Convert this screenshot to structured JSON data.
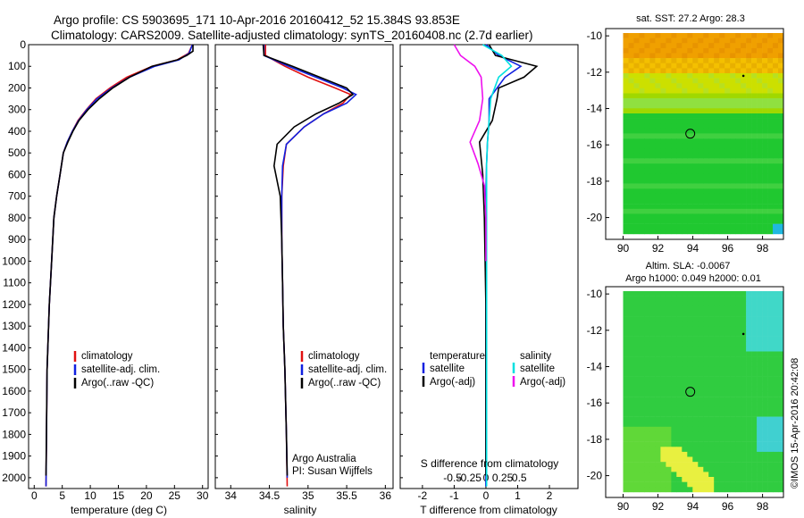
{
  "title": {
    "line1": "Argo profile: CS 5903695_171 10-Apr-2016 20160412_52 15.384S 93.853E",
    "line2": "Climatology: CARS2009. Satellite-adjusted climatology: synTS_20160408.nc (2.7d earlier)"
  },
  "colors": {
    "climatology": "#e01010",
    "satellite": "#1020e0",
    "argo": "#000000",
    "satellite_salinity": "#00e0e0",
    "argo_salinity_diff": "#ee10ee"
  },
  "depth_ticks": [
    "0",
    "100",
    "200",
    "300",
    "400",
    "500",
    "600",
    "700",
    "800",
    "900",
    "1000",
    "1100",
    "1200",
    "1300",
    "1400",
    "1500",
    "1600",
    "1700",
    "1800",
    "1900",
    "2000"
  ],
  "panels": {
    "temperature": {
      "xlabel": "temperature (deg C)",
      "xticks": [
        "0",
        "5",
        "10",
        "15",
        "20",
        "25",
        "30"
      ],
      "legend": [
        "climatology",
        "satellite-adj. clim.",
        "Argo(..raw -QC)"
      ]
    },
    "salinity": {
      "xlabel": "salinity",
      "xticks": [
        "34",
        "34.5",
        "35",
        "35.5",
        "36"
      ],
      "legend": [
        "climatology",
        "satellite-adj. clim.",
        "Argo(..raw -QC)"
      ],
      "credit1": "Argo Australia",
      "credit2": "PI: Susan Wijffels"
    },
    "difference": {
      "xlabel": "T difference from climatology",
      "slabel": "S difference from climatology",
      "xticks": [
        "-2",
        "-1",
        "0",
        "1",
        "2"
      ],
      "sticks": [
        "-0.5",
        "-0.25",
        "0",
        "0.25",
        "0.5"
      ],
      "legend_temp_head": "temperature",
      "legend_sal_head": "salinity",
      "legend_temp": [
        "satellite",
        "Argo(-adj)"
      ],
      "legend_sal": [
        "satellite",
        "Argo(-adj)"
      ]
    },
    "sst_map": {
      "title": "sat. SST: 27.2  Argo: 28.3",
      "xticks": [
        "90",
        "92",
        "94",
        "96",
        "98"
      ],
      "yticks": [
        "-10",
        "-12",
        "-14",
        "-16",
        "-18",
        "-20"
      ]
    },
    "sla_map": {
      "title1": "Altim. SLA: -0.0067",
      "title2": "Argo h1000: 0.049  h2000: 0.01",
      "xticks": [
        "90",
        "92",
        "94",
        "96",
        "98"
      ],
      "yticks": [
        "-10",
        "-12",
        "-14",
        "-16",
        "-18",
        "-20"
      ]
    }
  },
  "footer": "©IMOS 15-Apr-2016 20:42:08",
  "chart_data": [
    {
      "type": "line",
      "xlabel": "temperature (deg C)",
      "ylabel": "",
      "xlim": [
        -1,
        31
      ],
      "ylim": [
        2050,
        0
      ],
      "series": [
        {
          "name": "climatology",
          "x": [
            28.2,
            27.5,
            25.5,
            21,
            16.5,
            13.5,
            11,
            9.3,
            7.8,
            6.8,
            5.9,
            5.2,
            4.6,
            4.0,
            3.5,
            3.1,
            2.7,
            2.3,
            2.1
          ],
          "y": [
            0,
            40,
            70,
            100,
            150,
            200,
            250,
            300,
            350,
            400,
            450,
            500,
            600,
            700,
            800,
            1000,
            1200,
            1500,
            2040
          ]
        },
        {
          "name": "satellite-adj. clim.",
          "x": [
            28.2,
            27.6,
            25.8,
            21.5,
            17,
            13.8,
            11.2,
            9.4,
            7.9,
            6.8,
            5.9,
            5.2,
            4.6,
            4.0,
            3.5,
            3.1,
            2.7,
            2.3,
            2.1
          ],
          "y": [
            0,
            40,
            70,
            100,
            150,
            200,
            250,
            300,
            350,
            400,
            450,
            500,
            600,
            700,
            800,
            1000,
            1200,
            1500,
            2040
          ]
        },
        {
          "name": "Argo(..raw -QC)",
          "x": [
            28.3,
            28.3,
            27.2,
            25.5,
            21,
            17,
            14,
            11.6,
            9.6,
            8,
            6.9,
            6.0,
            5.2,
            4.6,
            4.0,
            3.5,
            3.1,
            2.7,
            2.3,
            2.1
          ],
          "y": [
            0,
            30,
            50,
            70,
            100,
            150,
            200,
            250,
            300,
            350,
            400,
            450,
            500,
            600,
            700,
            800,
            1000,
            1200,
            1500,
            1990
          ]
        }
      ]
    },
    {
      "type": "line",
      "xlabel": "salinity",
      "ylabel": "",
      "xlim": [
        33.8,
        36.1
      ],
      "ylim": [
        2050,
        0
      ],
      "series": [
        {
          "name": "climatology",
          "x": [
            34.45,
            34.45,
            34.7,
            35.0,
            35.35,
            35.55,
            35.45,
            35.2,
            34.95,
            34.72,
            34.68,
            34.66,
            34.66,
            34.67,
            34.68,
            34.7,
            34.72,
            34.73
          ],
          "y": [
            0,
            50,
            100,
            150,
            200,
            230,
            270,
            320,
            380,
            460,
            560,
            700,
            900,
            1100,
            1300,
            1500,
            1800,
            2040
          ]
        },
        {
          "name": "satellite-adj. clim.",
          "x": [
            34.43,
            34.43,
            34.75,
            35.1,
            35.45,
            35.62,
            35.5,
            35.2,
            34.95,
            34.72,
            34.67,
            34.66,
            34.66,
            34.67,
            34.68,
            34.7,
            34.72,
            34.73
          ],
          "y": [
            0,
            50,
            100,
            150,
            200,
            230,
            270,
            320,
            380,
            460,
            560,
            700,
            900,
            1100,
            1300,
            1500,
            1800,
            2000
          ]
        },
        {
          "name": "Argo(..raw -QC)",
          "x": [
            34.42,
            34.43,
            34.8,
            35.15,
            35.5,
            35.58,
            35.4,
            35.1,
            34.82,
            34.6,
            34.56,
            34.64,
            34.66,
            34.67,
            34.68,
            34.7,
            34.72,
            34.73
          ],
          "y": [
            0,
            50,
            100,
            150,
            200,
            230,
            270,
            320,
            380,
            460,
            560,
            700,
            900,
            1100,
            1300,
            1500,
            1800,
            1990
          ]
        }
      ]
    },
    {
      "type": "line",
      "xlabel": "T difference from climatology",
      "ylabel": "",
      "xlim": [
        -2.7,
        2.9
      ],
      "ylim": [
        2050,
        0
      ],
      "series": [
        {
          "name": "satellite (temperature)",
          "x": [
            0,
            0.4,
            1.1,
            0.6,
            0.1,
            0.1,
            0.05,
            0.02,
            0,
            0,
            0,
            0
          ],
          "y": [
            0,
            50,
            100,
            150,
            250,
            350,
            450,
            550,
            700,
            900,
            1200,
            2040
          ]
        },
        {
          "name": "Argo(-adj) (temperature)",
          "x": [
            0.1,
            0.3,
            1.6,
            1.2,
            0.4,
            0.35,
            0.2,
            -0.2,
            -0.1,
            -0.05,
            0,
            0
          ],
          "y": [
            0,
            50,
            100,
            150,
            200,
            250,
            350,
            450,
            600,
            800,
            1200,
            1990
          ]
        },
        {
          "name": "satellite (salinity)",
          "x": [
            -0.1,
            0.5,
            0.8,
            0.4,
            0.15,
            0.1,
            0.05,
            0.02,
            0.02,
            0.02,
            0.02
          ],
          "y": [
            0,
            50,
            100,
            150,
            250,
            350,
            450,
            550,
            700,
            1000,
            2040
          ]
        },
        {
          "name": "Argo(-adj) (salinity)",
          "x": [
            -1.0,
            -0.8,
            -0.35,
            -0.15,
            -0.1,
            -0.2,
            -0.5,
            -0.25,
            -0.05,
            0,
            0
          ],
          "y": [
            0,
            50,
            100,
            150,
            250,
            350,
            450,
            550,
            650,
            800,
            1000
          ]
        }
      ]
    },
    {
      "type": "heatmap",
      "title": "sat. SST: 27.2  Argo: 28.3",
      "xlim": [
        89,
        99.2
      ],
      "ylim": [
        -21.2,
        -9.6
      ],
      "argo_position": [
        93.853,
        -15.384
      ]
    },
    {
      "type": "heatmap",
      "title": "Altim. SLA: -0.0067",
      "xlim": [
        89,
        99.2
      ],
      "ylim": [
        -21.2,
        -9.6
      ],
      "argo_position": [
        93.853,
        -15.384
      ]
    }
  ]
}
